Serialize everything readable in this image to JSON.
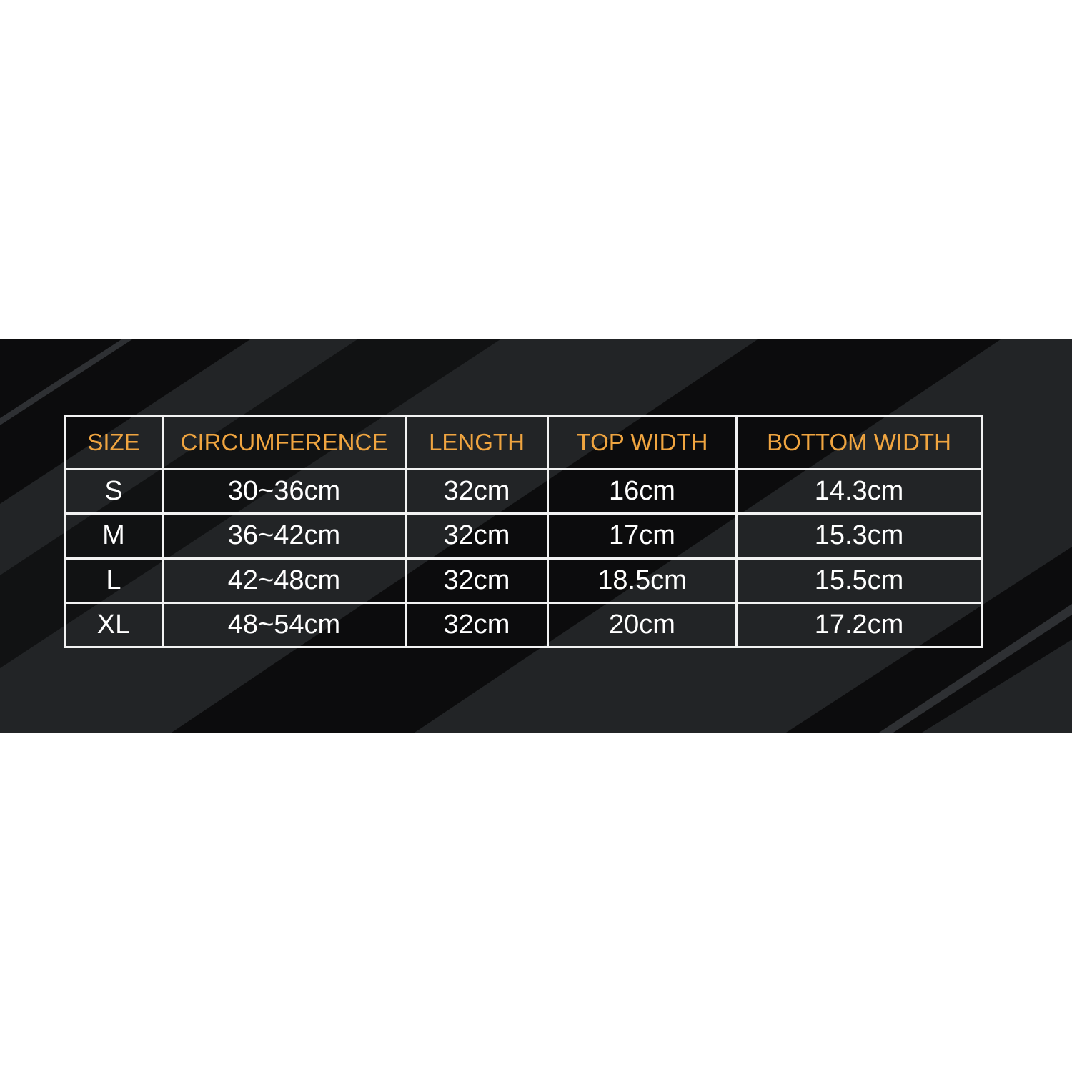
{
  "colors": {
    "background": "#222426",
    "stripe": "#0c0c0d",
    "header_text": "#f0a540",
    "cell_text": "#ffffff",
    "border": "#f2f2f2"
  },
  "table": {
    "headers": [
      "SIZE",
      "CIRCUMFERENCE",
      "LENGTH",
      "TOP WIDTH",
      "BOTTOM WIDTH"
    ],
    "rows": [
      [
        "S",
        "30~36cm",
        "32cm",
        "16cm",
        "14.3cm"
      ],
      [
        "M",
        "36~42cm",
        "32cm",
        "17cm",
        "15.3cm"
      ],
      [
        "L",
        "42~48cm",
        "32cm",
        "18.5cm",
        "15.5cm"
      ],
      [
        "XL",
        "48~54cm",
        "32cm",
        "20cm",
        "17.2cm"
      ]
    ]
  }
}
